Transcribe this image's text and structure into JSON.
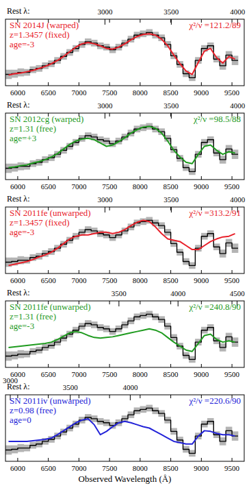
{
  "chart_data": [
    {
      "type": "line",
      "x": [
        5850,
        5950,
        6050,
        6150,
        6250,
        6350,
        6450,
        6550,
        6650,
        6750,
        6850,
        6950,
        7050,
        7150,
        7250,
        7350,
        7450,
        7550,
        7650,
        7750,
        7850,
        7950,
        8050,
        8150,
        8250,
        8350,
        8450,
        8550,
        8650,
        8750,
        8850,
        8950,
        9050,
        9150,
        9250,
        9350,
        9450,
        9550
      ],
      "xlim": [
        5800,
        9700
      ],
      "xticks": [
        6000,
        6500,
        7000,
        7500,
        8000,
        8500,
        9000,
        9500
      ],
      "x2label": "Rest λ:",
      "x2lim": [
        2250,
        4050
      ],
      "x2ticks": [
        3000,
        3500,
        4000
      ],
      "ylim": [
        0,
        1
      ],
      "tick_labels": "x",
      "annotations": [
        "z=1.3457 (fixed)",
        "age=-3"
      ],
      "fit_label": "χ²/ν =121.2/89",
      "series": [
        {
          "color": "#000000",
          "line_style": "step",
          "values": [
            0.17,
            0.18,
            0.2,
            0.2,
            0.24,
            0.26,
            0.3,
            0.33,
            0.38,
            0.44,
            0.5,
            0.56,
            0.62,
            0.66,
            0.64,
            0.6,
            0.58,
            0.54,
            0.58,
            0.64,
            0.7,
            0.76,
            0.78,
            0.8,
            0.76,
            0.72,
            0.62,
            0.45,
            0.32,
            0.18,
            0.12,
            0.38,
            0.56,
            0.6,
            0.4,
            0.3,
            0.46,
            0.38
          ],
          "error": [
            0.07,
            0.06,
            0.06,
            0.05,
            0.05,
            0.05,
            0.05,
            0.05,
            0.05,
            0.05,
            0.05,
            0.05,
            0.05,
            0.05,
            0.05,
            0.05,
            0.05,
            0.05,
            0.05,
            0.05,
            0.05,
            0.05,
            0.05,
            0.05,
            0.05,
            0.05,
            0.05,
            0.05,
            0.05,
            0.05,
            0.05,
            0.05,
            0.05,
            0.05,
            0.05,
            0.06,
            0.06,
            0.07
          ]
        },
        {
          "name": "SN 2014J (warped)",
          "color": "#e8202a",
          "line_style": "solid",
          "values": [
            0.16,
            0.18,
            0.19,
            0.21,
            0.23,
            0.26,
            0.29,
            0.33,
            0.38,
            0.44,
            0.51,
            0.58,
            0.63,
            0.65,
            0.63,
            0.6,
            0.56,
            0.55,
            0.58,
            0.63,
            0.69,
            0.74,
            0.77,
            0.78,
            0.76,
            0.7,
            0.6,
            0.46,
            0.33,
            0.22,
            0.17,
            0.35,
            0.52,
            0.56,
            0.42,
            0.34,
            0.44,
            0.4
          ]
        }
      ]
    },
    {
      "type": "line",
      "x": [
        5850,
        5950,
        6050,
        6150,
        6250,
        6350,
        6450,
        6550,
        6650,
        6750,
        6850,
        6950,
        7050,
        7150,
        7250,
        7350,
        7450,
        7550,
        7650,
        7750,
        7850,
        7950,
        8050,
        8150,
        8250,
        8350,
        8450,
        8550,
        8650,
        8750,
        8850,
        8950,
        9050,
        9150,
        9250,
        9350,
        9450,
        9550
      ],
      "xlim": [
        5800,
        9700
      ],
      "xticks": [
        6000,
        6500,
        7000,
        7500,
        8000,
        8500,
        9000,
        9500
      ],
      "x2label": "Rest λ:",
      "x2lim": [
        2250,
        4050
      ],
      "x2ticks": [
        3000,
        3500,
        4000
      ],
      "ylim": [
        0,
        1
      ],
      "tick_labels": "x",
      "annotations": [
        "z=1.31 (free)",
        "age=+3"
      ],
      "fit_label": "χ²/ν =98.5/88",
      "series": [
        {
          "color": "#000000",
          "line_style": "step",
          "values": [
            0.17,
            0.18,
            0.2,
            0.2,
            0.24,
            0.26,
            0.3,
            0.33,
            0.38,
            0.44,
            0.5,
            0.56,
            0.62,
            0.66,
            0.64,
            0.6,
            0.58,
            0.54,
            0.58,
            0.64,
            0.7,
            0.76,
            0.78,
            0.8,
            0.76,
            0.72,
            0.62,
            0.45,
            0.32,
            0.18,
            0.12,
            0.38,
            0.56,
            0.6,
            0.4,
            0.3,
            0.46,
            0.38
          ],
          "error": [
            0.07,
            0.06,
            0.06,
            0.05,
            0.05,
            0.05,
            0.05,
            0.05,
            0.05,
            0.05,
            0.05,
            0.05,
            0.05,
            0.05,
            0.05,
            0.05,
            0.05,
            0.05,
            0.05,
            0.05,
            0.05,
            0.05,
            0.05,
            0.05,
            0.05,
            0.05,
            0.05,
            0.05,
            0.05,
            0.05,
            0.05,
            0.05,
            0.05,
            0.05,
            0.05,
            0.06,
            0.06,
            0.07
          ]
        },
        {
          "name": "SN 2012cg (warped)",
          "color": "#1f9b1f",
          "line_style": "solid",
          "values": [
            0.18,
            0.19,
            0.21,
            0.22,
            0.25,
            0.27,
            0.3,
            0.34,
            0.39,
            0.46,
            0.53,
            0.58,
            0.61,
            0.62,
            0.6,
            0.55,
            0.5,
            0.52,
            0.57,
            0.63,
            0.7,
            0.75,
            0.79,
            0.8,
            0.77,
            0.7,
            0.58,
            0.44,
            0.34,
            0.26,
            0.24,
            0.38,
            0.5,
            0.52,
            0.44,
            0.38,
            0.42,
            0.4
          ]
        }
      ]
    },
    {
      "type": "line",
      "x": [
        5850,
        5950,
        6050,
        6150,
        6250,
        6350,
        6450,
        6550,
        6650,
        6750,
        6850,
        6950,
        7050,
        7150,
        7250,
        7350,
        7450,
        7550,
        7650,
        7750,
        7850,
        7950,
        8050,
        8150,
        8250,
        8350,
        8450,
        8550,
        8650,
        8750,
        8850,
        8950,
        9050,
        9150,
        9250,
        9350,
        9450,
        9550
      ],
      "xlim": [
        5800,
        9700
      ],
      "xticks": [
        6000,
        6500,
        7000,
        7500,
        8000,
        8500,
        9000,
        9500
      ],
      "x2label": "Rest λ:",
      "x2lim": [
        2250,
        4050
      ],
      "x2ticks": [
        3000,
        3500,
        4000
      ],
      "ylim": [
        0,
        1
      ],
      "tick_labels": "x",
      "annotations": [
        "z=1.3457 (fixed)",
        "age=-3"
      ],
      "fit_label": "χ²/ν =313.2/91",
      "series": [
        {
          "color": "#000000",
          "line_style": "step",
          "values": [
            0.17,
            0.18,
            0.2,
            0.2,
            0.24,
            0.26,
            0.3,
            0.33,
            0.38,
            0.44,
            0.5,
            0.56,
            0.62,
            0.66,
            0.64,
            0.6,
            0.58,
            0.54,
            0.58,
            0.64,
            0.7,
            0.76,
            0.78,
            0.8,
            0.76,
            0.72,
            0.62,
            0.45,
            0.32,
            0.18,
            0.12,
            0.38,
            0.56,
            0.6,
            0.4,
            0.3,
            0.46,
            0.38
          ],
          "error": [
            0.07,
            0.06,
            0.06,
            0.05,
            0.05,
            0.05,
            0.05,
            0.05,
            0.05,
            0.05,
            0.05,
            0.05,
            0.05,
            0.05,
            0.05,
            0.05,
            0.05,
            0.05,
            0.05,
            0.05,
            0.05,
            0.05,
            0.05,
            0.05,
            0.05,
            0.05,
            0.05,
            0.05,
            0.05,
            0.05,
            0.05,
            0.05,
            0.05,
            0.05,
            0.05,
            0.06,
            0.06,
            0.07
          ]
        },
        {
          "name": "SN 2011fe (unwarped)",
          "color": "#e8202a",
          "line_style": "solid",
          "values": [
            0.12,
            0.14,
            0.16,
            0.18,
            0.21,
            0.25,
            0.28,
            0.32,
            0.38,
            0.45,
            0.52,
            0.56,
            0.58,
            0.58,
            0.6,
            0.62,
            0.62,
            0.6,
            0.62,
            0.66,
            0.72,
            0.77,
            0.8,
            0.78,
            0.7,
            0.6,
            0.52,
            0.5,
            0.48,
            0.42,
            0.36,
            0.36,
            0.42,
            0.48,
            0.52,
            0.55,
            0.56,
            0.6
          ]
        }
      ]
    },
    {
      "type": "line",
      "x": [
        5850,
        5950,
        6050,
        6150,
        6250,
        6350,
        6450,
        6550,
        6650,
        6750,
        6850,
        6950,
        7050,
        7150,
        7250,
        7350,
        7450,
        7550,
        7650,
        7750,
        7850,
        7950,
        8050,
        8150,
        8250,
        8350,
        8450,
        8550,
        8650,
        8750,
        8850,
        8950,
        9050,
        9150,
        9250,
        9350,
        9450,
        9550
      ],
      "xlim": [
        5800,
        9700
      ],
      "xticks": [
        6000,
        6500,
        7000,
        7500,
        8000,
        8500,
        9000,
        9500
      ],
      "x2label": "Rest λ:",
      "x2lim": [
        2540,
        4560
      ],
      "x2ticks": [
        3500,
        4000,
        4500
      ],
      "ylim": [
        0,
        1
      ],
      "tick_labels": "x",
      "annotations": [
        "z=1.31 (free)",
        "age=-3"
      ],
      "fit_label": "χ²/ν =240.8/90",
      "series": [
        {
          "color": "#000000",
          "line_style": "step",
          "values": [
            0.17,
            0.18,
            0.2,
            0.2,
            0.24,
            0.26,
            0.3,
            0.33,
            0.38,
            0.44,
            0.5,
            0.56,
            0.62,
            0.66,
            0.64,
            0.6,
            0.58,
            0.54,
            0.58,
            0.64,
            0.7,
            0.76,
            0.78,
            0.8,
            0.76,
            0.72,
            0.62,
            0.45,
            0.32,
            0.18,
            0.12,
            0.38,
            0.56,
            0.6,
            0.4,
            0.3,
            0.46,
            0.38
          ],
          "error": [
            0.07,
            0.06,
            0.06,
            0.05,
            0.05,
            0.05,
            0.05,
            0.05,
            0.05,
            0.05,
            0.05,
            0.05,
            0.05,
            0.05,
            0.05,
            0.05,
            0.05,
            0.05,
            0.05,
            0.05,
            0.05,
            0.05,
            0.05,
            0.05,
            0.05,
            0.05,
            0.05,
            0.05,
            0.05,
            0.05,
            0.05,
            0.05,
            0.05,
            0.05,
            0.05,
            0.06,
            0.06,
            0.07
          ]
        },
        {
          "name": "SN 2011fe (unwarped)",
          "color": "#1f9b1f",
          "line_style": "solid",
          "values": [
            0.3,
            0.31,
            0.32,
            0.33,
            0.34,
            0.35,
            0.36,
            0.38,
            0.42,
            0.47,
            0.52,
            0.54,
            0.52,
            0.48,
            0.45,
            0.44,
            0.45,
            0.46,
            0.48,
            0.5,
            0.52,
            0.54,
            0.56,
            0.58,
            0.56,
            0.52,
            0.45,
            0.38,
            0.32,
            0.26,
            0.24,
            0.36,
            0.48,
            0.5,
            0.42,
            0.38,
            0.4,
            0.38
          ]
        }
      ]
    },
    {
      "type": "line",
      "x": [
        5850,
        5950,
        6050,
        6150,
        6250,
        6350,
        6450,
        6550,
        6650,
        6750,
        6850,
        6950,
        7050,
        7150,
        7250,
        7350,
        7450,
        7550,
        7650,
        7750,
        7850,
        7950,
        8050,
        8150,
        8250,
        8350,
        8450,
        8550,
        8650,
        8750,
        8850,
        8950,
        9050,
        9150,
        9250,
        9350,
        9450,
        9550
      ],
      "xlim": [
        5800,
        9700
      ],
      "xticks": [
        6000,
        6500,
        7000,
        7500,
        8000,
        8500,
        9000,
        9500
      ],
      "x2label": "Rest λ:",
      "x2lim": [
        2960,
        4950
      ],
      "x2ticks": [
        3000,
        3500,
        4000
      ],
      "xlabel": "Observed Wavelength (Å)",
      "ylim": [
        0,
        1
      ],
      "tick_labels": "x",
      "annotations": [
        "z=0.98 (free)",
        "age=0"
      ],
      "fit_label": "χ²/ν =220.6/90",
      "series": [
        {
          "color": "#000000",
          "line_style": "step",
          "values": [
            0.17,
            0.18,
            0.2,
            0.2,
            0.24,
            0.26,
            0.3,
            0.33,
            0.38,
            0.44,
            0.5,
            0.56,
            0.62,
            0.66,
            0.64,
            0.6,
            0.58,
            0.54,
            0.58,
            0.64,
            0.7,
            0.76,
            0.78,
            0.8,
            0.76,
            0.72,
            0.62,
            0.45,
            0.32,
            0.18,
            0.12,
            0.38,
            0.56,
            0.6,
            0.4,
            0.3,
            0.46,
            0.38
          ],
          "error": [
            0.07,
            0.06,
            0.06,
            0.05,
            0.05,
            0.05,
            0.05,
            0.05,
            0.05,
            0.05,
            0.05,
            0.05,
            0.05,
            0.05,
            0.05,
            0.05,
            0.05,
            0.05,
            0.05,
            0.05,
            0.05,
            0.05,
            0.05,
            0.05,
            0.05,
            0.05,
            0.05,
            0.05,
            0.05,
            0.05,
            0.05,
            0.05,
            0.05,
            0.05,
            0.05,
            0.06,
            0.06,
            0.07
          ]
        },
        {
          "name": "SN 2011iv (unwarped)",
          "color": "#2323d8",
          "line_style": "solid",
          "values": [
            0.3,
            0.3,
            0.3,
            0.3,
            0.31,
            0.32,
            0.33,
            0.35,
            0.4,
            0.46,
            0.52,
            0.58,
            0.62,
            0.64,
            0.55,
            0.4,
            0.45,
            0.52,
            0.58,
            0.6,
            0.58,
            0.55,
            0.52,
            0.5,
            0.45,
            0.4,
            0.35,
            0.3,
            0.28,
            0.26,
            0.26,
            0.38,
            0.46,
            0.45,
            0.42,
            0.4,
            0.4,
            0.38
          ]
        }
      ]
    }
  ]
}
